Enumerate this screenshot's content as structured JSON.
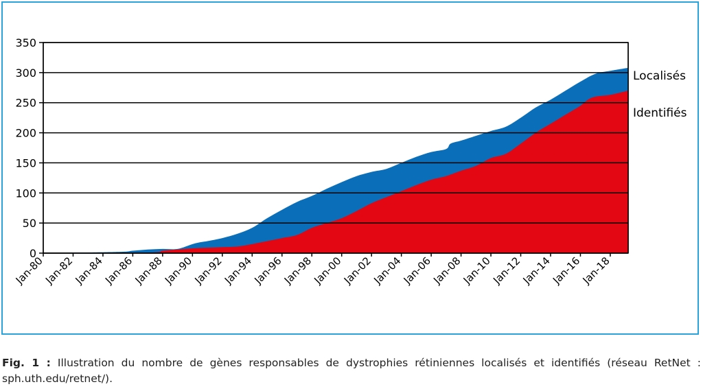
{
  "chart_data": {
    "type": "area",
    "stacked": false,
    "x_tick_labels": [
      "Jan-80",
      "Jan-82",
      "Jan-84",
      "Jan-86",
      "Jan-88",
      "Jan-90",
      "Jan-92",
      "Jan-94",
      "Jan-96",
      "Jan-98",
      "Jan-00",
      "Jan-02",
      "Jan-04",
      "Jan-06",
      "Jan-08",
      "Jan-10",
      "Jan-12",
      "Jan-14",
      "Jan-16",
      "Jan-18"
    ],
    "x_tick_years": [
      1980,
      1982,
      1984,
      1986,
      1988,
      1990,
      1992,
      1994,
      1996,
      1998,
      2000,
      2002,
      2004,
      2006,
      2008,
      2010,
      2012,
      2014,
      2016,
      2018
    ],
    "xlim": [
      1980,
      2019.2
    ],
    "ylim": [
      0,
      350
    ],
    "y_ticks": [
      0,
      50,
      100,
      150,
      200,
      250,
      300,
      350
    ],
    "grid": "horizontal",
    "series": [
      {
        "name": "Localisés",
        "color": "#0a6fb8",
        "x": [
          1980,
          1985,
          1986,
          1987,
          1988,
          1989,
          1990,
          1990.5,
          1991,
          1992,
          1993,
          1994,
          1995,
          1996,
          1997,
          1998,
          1999,
          2000,
          2001,
          2002,
          2003,
          2004,
          2005,
          2006,
          2007,
          2007.3,
          2008,
          2009,
          2010,
          2011,
          2012,
          2013,
          2014,
          2015,
          2016,
          2017,
          2018,
          2019.2
        ],
        "y": [
          0,
          2,
          4,
          6,
          7,
          7,
          15,
          18,
          20,
          25,
          32,
          42,
          58,
          72,
          85,
          95,
          107,
          118,
          128,
          135,
          140,
          150,
          160,
          168,
          173,
          182,
          187,
          195,
          203,
          210,
          225,
          242,
          255,
          270,
          285,
          298,
          303,
          308
        ]
      },
      {
        "name": "Identifiés",
        "color": "#e30613",
        "x": [
          1980,
          1987,
          1988,
          1989,
          1990,
          1991,
          1992,
          1993,
          1994,
          1995,
          1996,
          1997,
          1998,
          1999,
          2000,
          2001,
          2002,
          2003,
          2004,
          2005,
          2006,
          2007,
          2008,
          2009,
          2010,
          2011,
          2012,
          2013,
          2014,
          2015,
          2016,
          2016.5,
          2017,
          2018,
          2019.2
        ],
        "y": [
          0,
          1,
          4,
          6,
          8,
          9,
          10,
          11,
          15,
          20,
          25,
          30,
          42,
          50,
          58,
          70,
          83,
          93,
          103,
          113,
          122,
          128,
          137,
          145,
          158,
          165,
          182,
          200,
          215,
          230,
          245,
          255,
          260,
          263,
          270
        ]
      }
    ]
  },
  "caption": {
    "label": "Fig. 1 :",
    "text": "Illustration du nombre de gènes responsables de dystrophies rétiniennes localisés et identifiés (réseau RetNet : sph.uth.edu/retnet/)."
  }
}
